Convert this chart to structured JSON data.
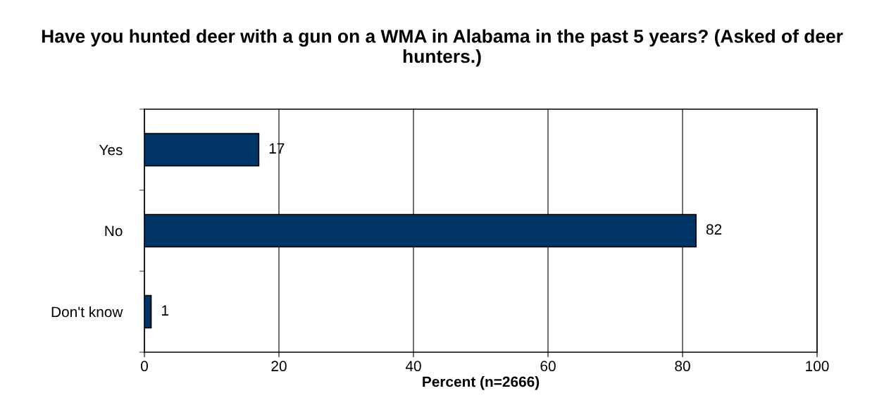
{
  "chart_data": {
    "type": "bar",
    "orientation": "horizontal",
    "title": "Have you hunted deer with a gun on a WMA in Alabama in the past 5 years? (Asked of deer hunters.)",
    "xlabel": "Percent (n=2666)",
    "categories": [
      "Yes",
      "No",
      "Don't know"
    ],
    "values": [
      17,
      82,
      1
    ],
    "color": "#003366",
    "xlim": [
      0,
      100
    ],
    "xticks": [
      0,
      20,
      40,
      60,
      80,
      100
    ],
    "grid": "x",
    "data_labels": true
  }
}
